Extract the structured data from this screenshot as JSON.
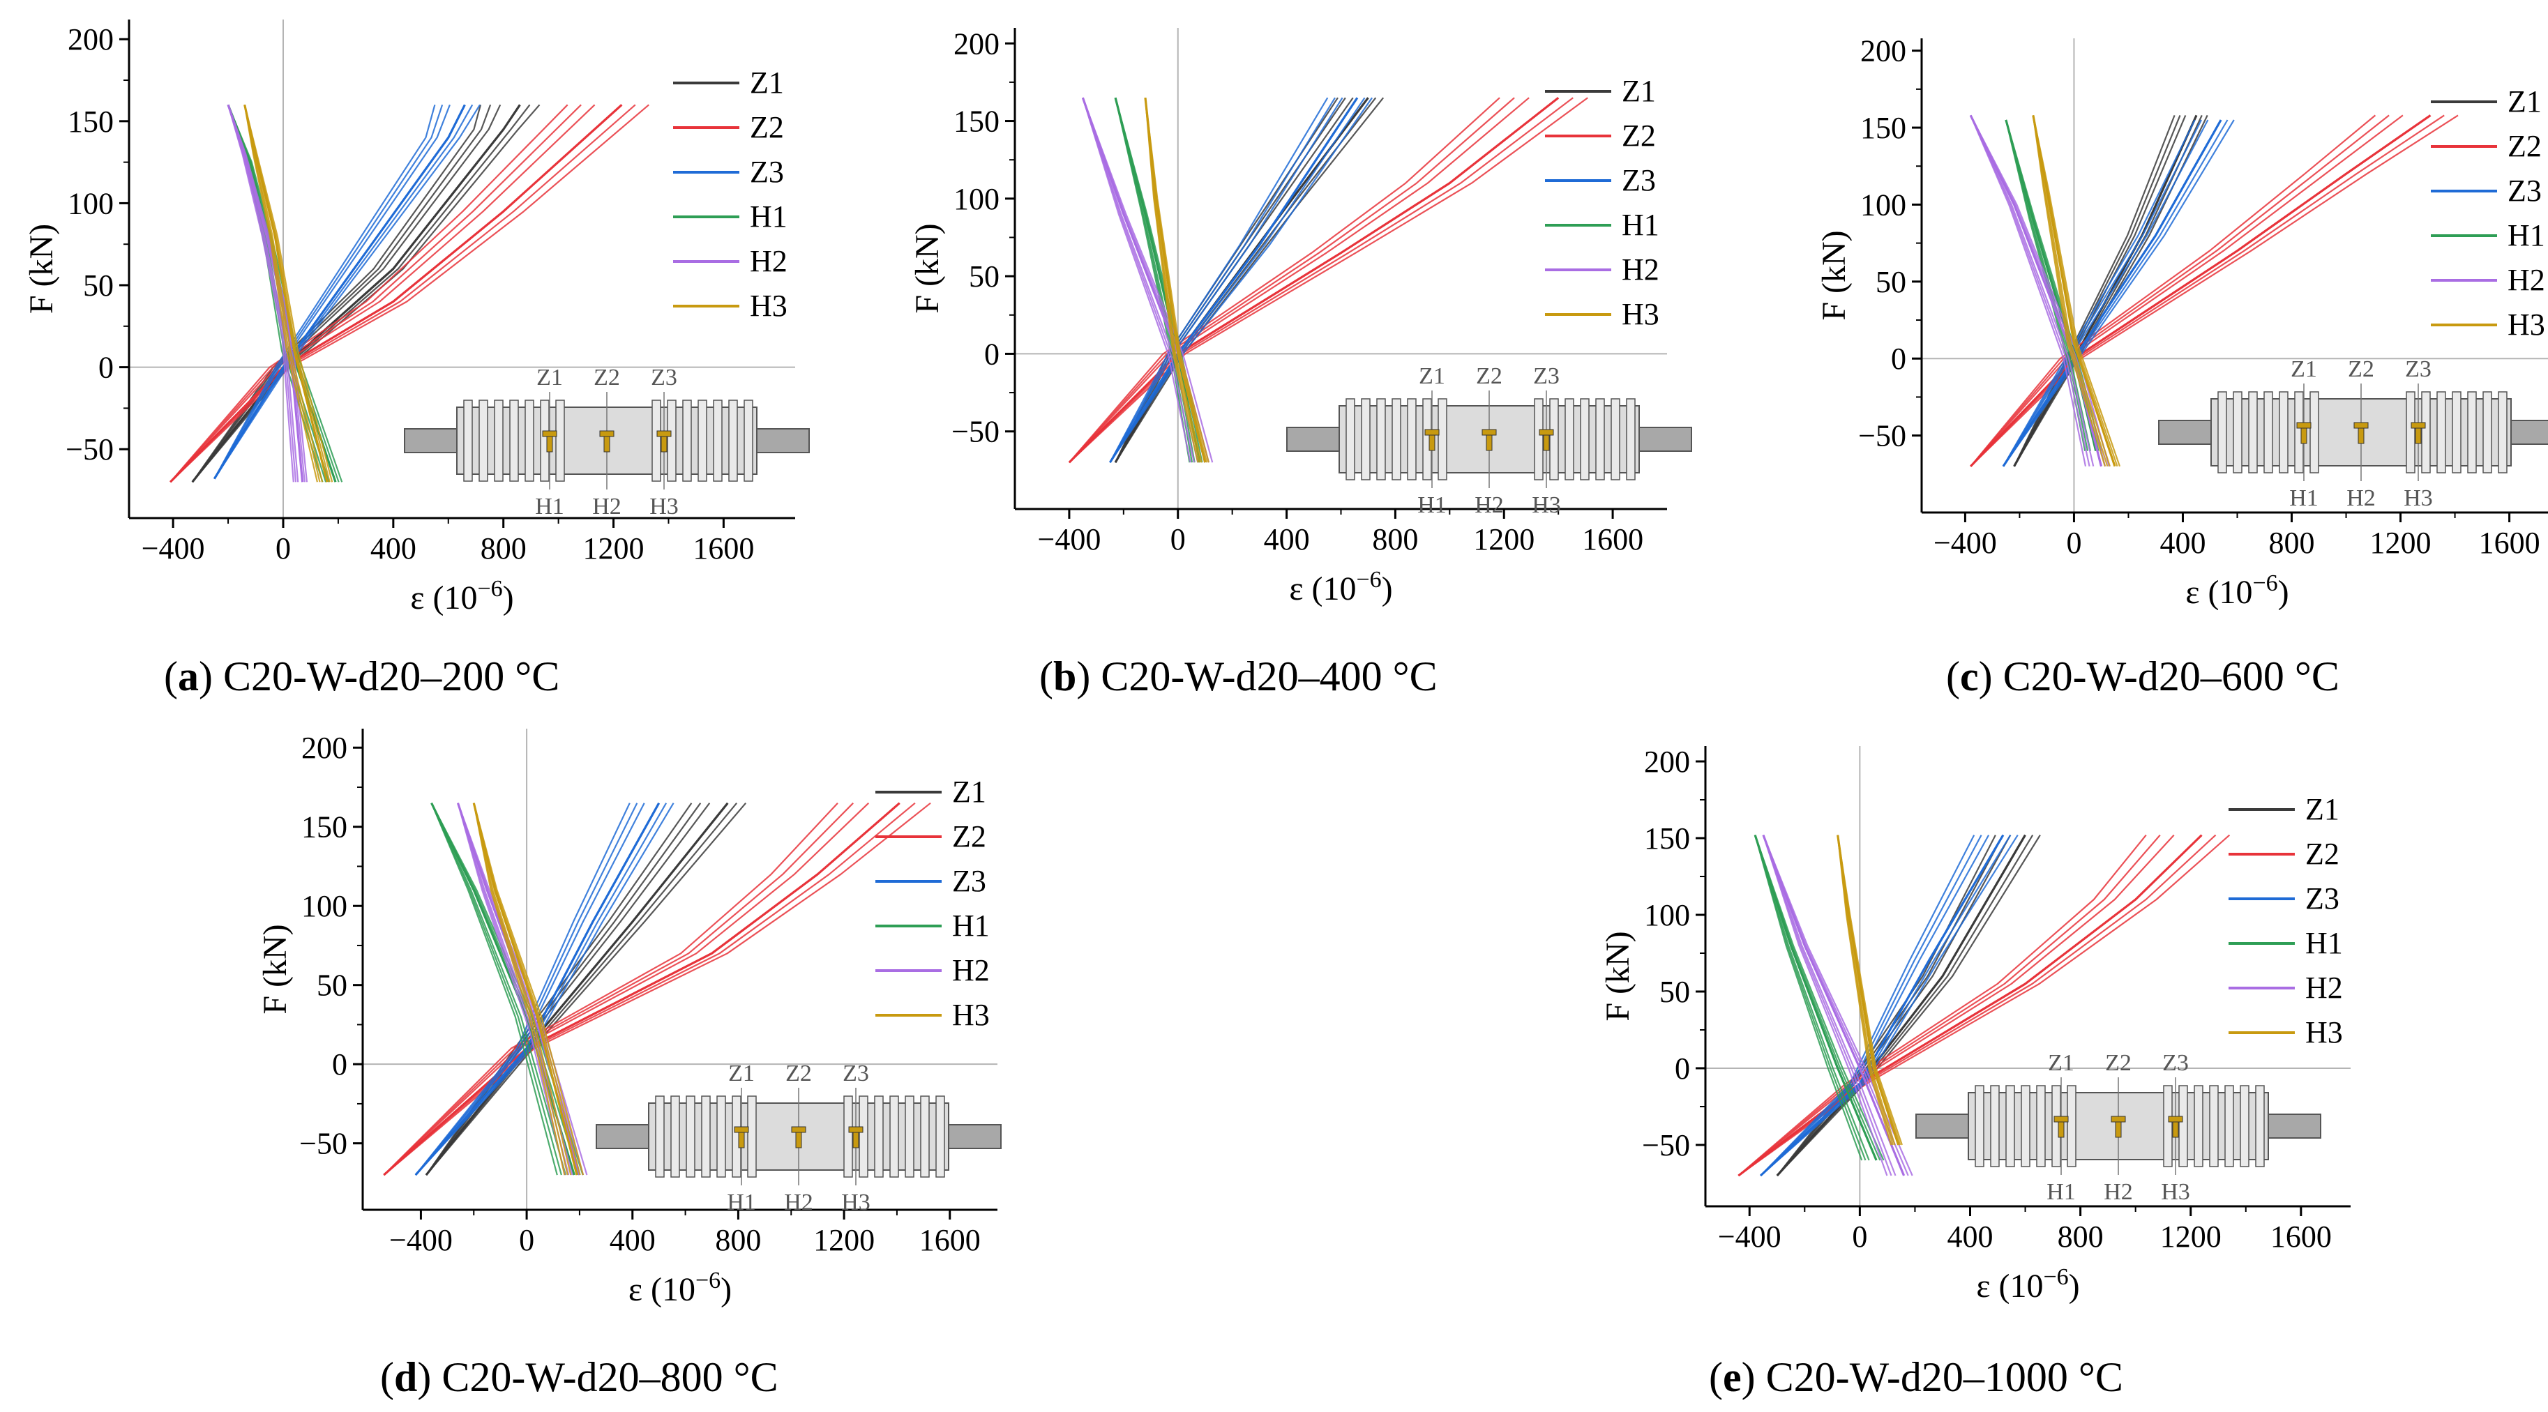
{
  "figure": {
    "panels": [
      {
        "id": "a",
        "caption_letter": "a",
        "caption_text": "C20-W-d20–200 °C",
        "chart_data": {
          "type": "line",
          "title": "",
          "xlabel": "ε (10",
          "xlabel_sup": "−6",
          "xlabel_close": ")",
          "ylabel": "F (kN)",
          "xlim": [
            -560,
            1860
          ],
          "ylim": [
            -92,
            212
          ],
          "xticks": [
            -400,
            0,
            400,
            800,
            1200,
            1600
          ],
          "xtick_labels": [
            "−400",
            "0",
            "400",
            "800",
            "1200",
            "1600"
          ],
          "yticks": [
            -50,
            0,
            50,
            100,
            150,
            200
          ],
          "ytick_labels": [
            "−50",
            "0",
            "50",
            "100",
            "150",
            "200"
          ],
          "series": [
            {
              "name": "Z1",
              "color": "#3a3a3a",
              "x": [
                -330,
                0,
                400,
                800,
                860
              ],
              "y": [
                -70,
                0,
                60,
                145,
                160
              ]
            },
            {
              "name": "Z2",
              "color": "#e8333a",
              "x": [
                -410,
                0,
                400,
                800,
                1230
              ],
              "y": [
                -70,
                0,
                40,
                95,
                160
              ]
            },
            {
              "name": "Z3",
              "color": "#1f6bd6",
              "x": [
                -250,
                0,
                300,
                600,
                660
              ],
              "y": [
                -68,
                0,
                70,
                140,
                160
              ]
            },
            {
              "name": "H1",
              "color": "#2e9e55",
              "x": [
                -200,
                -120,
                -40,
                30,
                190
              ],
              "y": [
                160,
                125,
                70,
                10,
                -70
              ]
            },
            {
              "name": "H2",
              "color": "#a96de3",
              "x": [
                -200,
                -140,
                -60,
                20,
                70
              ],
              "y": [
                160,
                130,
                80,
                20,
                -70
              ]
            },
            {
              "name": "H3",
              "color": "#c89a10",
              "x": [
                -140,
                -100,
                -30,
                40,
                160
              ],
              "y": [
                160,
                130,
                80,
                10,
                -70
              ]
            }
          ]
        },
        "inset_labels_top": [
          "Z1",
          "Z2",
          "Z3"
        ],
        "inset_labels_bottom": [
          "H1",
          "H2",
          "H3"
        ]
      },
      {
        "id": "b",
        "caption_letter": "b",
        "caption_text": "C20-W-d20–400 °C",
        "chart_data": {
          "type": "line",
          "title": "",
          "xlabel": "ε (10",
          "xlabel_sup": "−6",
          "xlabel_close": ")",
          "ylabel": "F (kN)",
          "xlim": [
            -600,
            1800
          ],
          "ylim": [
            -100,
            210
          ],
          "xticks": [
            -400,
            0,
            400,
            800,
            1200,
            1600
          ],
          "xtick_labels": [
            "−400",
            "0",
            "400",
            "800",
            "1200",
            "1600"
          ],
          "yticks": [
            -50,
            0,
            50,
            100,
            150,
            200
          ],
          "ytick_labels": [
            "−50",
            "0",
            "50",
            "100",
            "150",
            "200"
          ],
          "series": [
            {
              "name": "Z1",
              "color": "#3a3a3a",
              "x": [
                -230,
                0,
                400,
                700
              ],
              "y": [
                -70,
                0,
                95,
                165
              ]
            },
            {
              "name": "Z2",
              "color": "#e8333a",
              "x": [
                -400,
                0,
                600,
                1000,
                1400
              ],
              "y": [
                -70,
                0,
                65,
                110,
                165
              ]
            },
            {
              "name": "Z3",
              "color": "#1f6bd6",
              "x": [
                -250,
                0,
                300,
                660
              ],
              "y": [
                -70,
                0,
                70,
                165
              ]
            },
            {
              "name": "H1",
              "color": "#2e9e55",
              "x": [
                -230,
                -120,
                0,
                80
              ],
              "y": [
                165,
                90,
                0,
                -70
              ]
            },
            {
              "name": "H2",
              "color": "#a96de3",
              "x": [
                -350,
                -200,
                0,
                100
              ],
              "y": [
                165,
                90,
                0,
                -70
              ]
            },
            {
              "name": "H3",
              "color": "#c89a10",
              "x": [
                -120,
                -80,
                0,
                100
              ],
              "y": [
                165,
                100,
                0,
                -70
              ]
            }
          ]
        },
        "inset_labels_top": [
          "Z1",
          "Z2",
          "Z3"
        ],
        "inset_labels_bottom": [
          "H1",
          "H2",
          "H3"
        ]
      },
      {
        "id": "c",
        "caption_letter": "c",
        "caption_text": "C20-W-d20–600 °C",
        "chart_data": {
          "type": "line",
          "title": "",
          "xlabel": "ε (10",
          "xlabel_sup": "−6",
          "xlabel_close": ")",
          "ylabel": "F (kN)",
          "xlim": [
            -560,
            1760
          ],
          "ylim": [
            -100,
            208
          ],
          "xticks": [
            -400,
            0,
            400,
            800,
            1200,
            1600
          ],
          "xtick_labels": [
            "−400",
            "0",
            "400",
            "800",
            "1200",
            "1600"
          ],
          "yticks": [
            -50,
            0,
            50,
            100,
            150,
            200
          ],
          "ytick_labels": [
            "−50",
            "0",
            "50",
            "100",
            "150",
            "200"
          ],
          "series": [
            {
              "name": "Z1",
              "color": "#3a3a3a",
              "x": [
                -220,
                0,
                250,
                450
              ],
              "y": [
                -70,
                0,
                80,
                158
              ]
            },
            {
              "name": "Z2",
              "color": "#e8333a",
              "x": [
                -380,
                0,
                600,
                1000,
                1310
              ],
              "y": [
                -70,
                0,
                70,
                120,
                158
              ]
            },
            {
              "name": "Z3",
              "color": "#1f6bd6",
              "x": [
                -260,
                0,
                300,
                540
              ],
              "y": [
                -70,
                0,
                80,
                155
              ]
            },
            {
              "name": "H1",
              "color": "#2e9e55",
              "x": [
                -250,
                -150,
                0,
                80
              ],
              "y": [
                155,
                90,
                0,
                -60
              ]
            },
            {
              "name": "H2",
              "color": "#a96de3",
              "x": [
                -380,
                -220,
                0,
                100
              ],
              "y": [
                158,
                100,
                0,
                -70
              ]
            },
            {
              "name": "H3",
              "color": "#c89a10",
              "x": [
                -150,
                -100,
                0,
                150
              ],
              "y": [
                158,
                110,
                10,
                -70
              ]
            }
          ]
        },
        "inset_labels_top": [
          "Z1",
          "Z2",
          "Z3"
        ],
        "inset_labels_bottom": [
          "H1",
          "H2",
          "H3"
        ]
      },
      {
        "id": "d",
        "caption_letter": "d",
        "caption_text": "C20-W-d20–800 °C",
        "chart_data": {
          "type": "line",
          "title": "",
          "xlabel": "ε (10",
          "xlabel_sup": "−6",
          "xlabel_close": ")",
          "ylabel": "F (kN)",
          "xlim": [
            -620,
            1780
          ],
          "ylim": [
            -92,
            212
          ],
          "xticks": [
            -400,
            0,
            400,
            800,
            1200,
            1600
          ],
          "xtick_labels": [
            "−400",
            "0",
            "400",
            "800",
            "1200",
            "1600"
          ],
          "yticks": [
            -50,
            0,
            50,
            100,
            150,
            200
          ],
          "ytick_labels": [
            "−50",
            "0",
            "50",
            "100",
            "150",
            "200"
          ],
          "series": [
            {
              "name": "Z1",
              "color": "#3a3a3a",
              "x": [
                -380,
                0,
                400,
                760
              ],
              "y": [
                -70,
                10,
                90,
                165
              ]
            },
            {
              "name": "Z2",
              "color": "#e8333a",
              "x": [
                -540,
                0,
                700,
                1100,
                1410
              ],
              "y": [
                -70,
                10,
                70,
                120,
                165
              ]
            },
            {
              "name": "Z3",
              "color": "#1f6bd6",
              "x": [
                -420,
                0,
                250,
                500
              ],
              "y": [
                -70,
                10,
                90,
                165
              ]
            },
            {
              "name": "H1",
              "color": "#2e9e55",
              "x": [
                -360,
                -200,
                0,
                180
              ],
              "y": [
                165,
                110,
                30,
                -70
              ]
            },
            {
              "name": "H2",
              "color": "#a96de3",
              "x": [
                -260,
                -150,
                50,
                200
              ],
              "y": [
                165,
                110,
                20,
                -70
              ]
            },
            {
              "name": "H3",
              "color": "#c89a10",
              "x": [
                -200,
                -120,
                40,
                190
              ],
              "y": [
                165,
                110,
                30,
                -70
              ]
            }
          ]
        },
        "inset_labels_top": [
          "Z1",
          "Z2",
          "Z3"
        ],
        "inset_labels_bottom": [
          "H1",
          "H2",
          "H3"
        ]
      },
      {
        "id": "e",
        "caption_letter": "e",
        "caption_text": "C20-W-d20–1000 °C",
        "chart_data": {
          "type": "line",
          "title": "",
          "xlabel": "ε (10",
          "xlabel_sup": "−6",
          "xlabel_close": ")",
          "ylabel": "F (kN)",
          "xlim": [
            -560,
            1780
          ],
          "ylim": [
            -90,
            210
          ],
          "xticks": [
            -400,
            0,
            400,
            800,
            1200,
            1600
          ],
          "xtick_labels": [
            "−400",
            "0",
            "400",
            "800",
            "1200",
            "1600"
          ],
          "yticks": [
            -50,
            0,
            50,
            100,
            150,
            200
          ],
          "ytick_labels": [
            "−50",
            "0",
            "50",
            "100",
            "150",
            "200"
          ],
          "series": [
            {
              "name": "Z1",
              "color": "#3a3a3a",
              "x": [
                -300,
                0,
                300,
                600
              ],
              "y": [
                -70,
                -10,
                60,
                152
              ]
            },
            {
              "name": "Z2",
              "color": "#e8333a",
              "x": [
                -440,
                0,
                600,
                1000,
                1240
              ],
              "y": [
                -70,
                -10,
                55,
                110,
                152
              ]
            },
            {
              "name": "Z3",
              "color": "#1f6bd6",
              "x": [
                -360,
                0,
                250,
                520
              ],
              "y": [
                -70,
                -10,
                70,
                152
              ]
            },
            {
              "name": "H1",
              "color": "#2e9e55",
              "x": [
                -380,
                -250,
                -80,
                60
              ],
              "y": [
                152,
                80,
                0,
                -60
              ]
            },
            {
              "name": "H2",
              "color": "#a96de3",
              "x": [
                -350,
                -200,
                0,
                160
              ],
              "y": [
                152,
                80,
                0,
                -70
              ]
            },
            {
              "name": "H3",
              "color": "#c89a10",
              "x": [
                -80,
                -40,
                50,
                140
              ],
              "y": [
                152,
                100,
                0,
                -50
              ]
            }
          ]
        },
        "inset_labels_top": [
          "Z1",
          "Z2",
          "Z3"
        ],
        "inset_labels_bottom": [
          "H1",
          "H2",
          "H3"
        ]
      }
    ],
    "colors": {
      "axis": "#000000",
      "zero_line": "#b4b4b4",
      "inset_fill": "#dcdcdc",
      "inset_rod": "#a8a8a8",
      "inset_label": "#555555",
      "gauge": "#c89a10"
    }
  }
}
